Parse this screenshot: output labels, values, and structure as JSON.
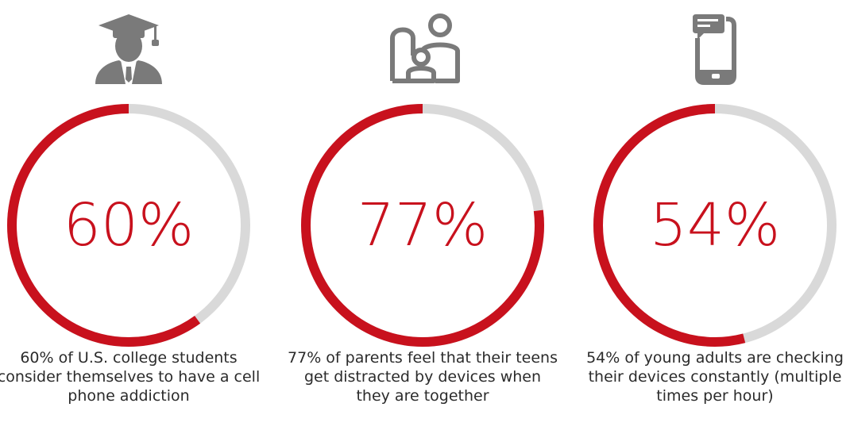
{
  "chart_data": [
    {
      "type": "pie",
      "values": [
        60,
        40
      ],
      "label": "60%",
      "caption": "60% of U.S. college students consider themselves to have a cell phone addiction",
      "icon": "graduate-icon"
    },
    {
      "type": "pie",
      "values": [
        77,
        23
      ],
      "label": "77%",
      "caption": "77% of parents feel that their teens get distracted by devices when they are together",
      "icon": "family-icon"
    },
    {
      "type": "pie",
      "values": [
        54,
        46
      ],
      "label": "54%",
      "caption": "54% of young adults are checking their devices constantly (multiple times per hour)",
      "icon": "smartphone-message-icon"
    }
  ],
  "colors": {
    "accent": "#c8111d",
    "track": "#d9d9d9",
    "icon": "#7a7a7a",
    "text": "#2b2b2b"
  }
}
